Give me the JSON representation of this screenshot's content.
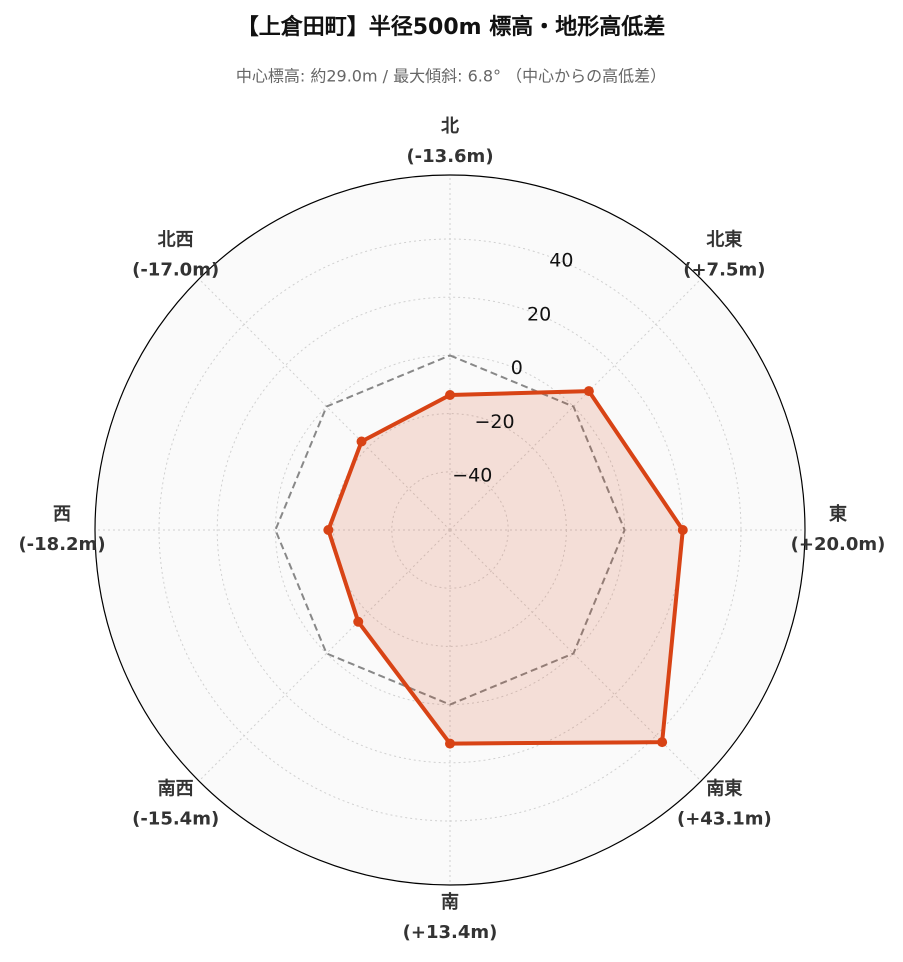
{
  "chart_data": {
    "type": "radar",
    "title": "【上倉田町】半径500m 標高・地形高低差",
    "subtitle": "中心標高: 約29.0m / 最大傾斜: 6.8° （中心からの高低差）",
    "categories": [
      "北",
      "北東",
      "東",
      "南東",
      "南",
      "南西",
      "西",
      "北西"
    ],
    "series": [
      {
        "color": "#d84315",
        "values": [
          -13.6,
          7.5,
          20.0,
          43.1,
          13.4,
          -15.4,
          -18.2,
          -17.0
        ],
        "value_labels": [
          "(-13.6m)",
          "(+7.5m)",
          "(+20.0m)",
          "(+43.1m)",
          "(+13.4m)",
          "(-15.4m)",
          "(-18.2m)",
          "(-17.0m)"
        ]
      }
    ],
    "reference_line": 0,
    "ylim": [
      -60,
      62
    ],
    "yticks": [
      {
        "value": -40,
        "label": "−40"
      },
      {
        "value": -20,
        "label": "−20"
      },
      0,
      20,
      40
    ],
    "grid": true
  }
}
